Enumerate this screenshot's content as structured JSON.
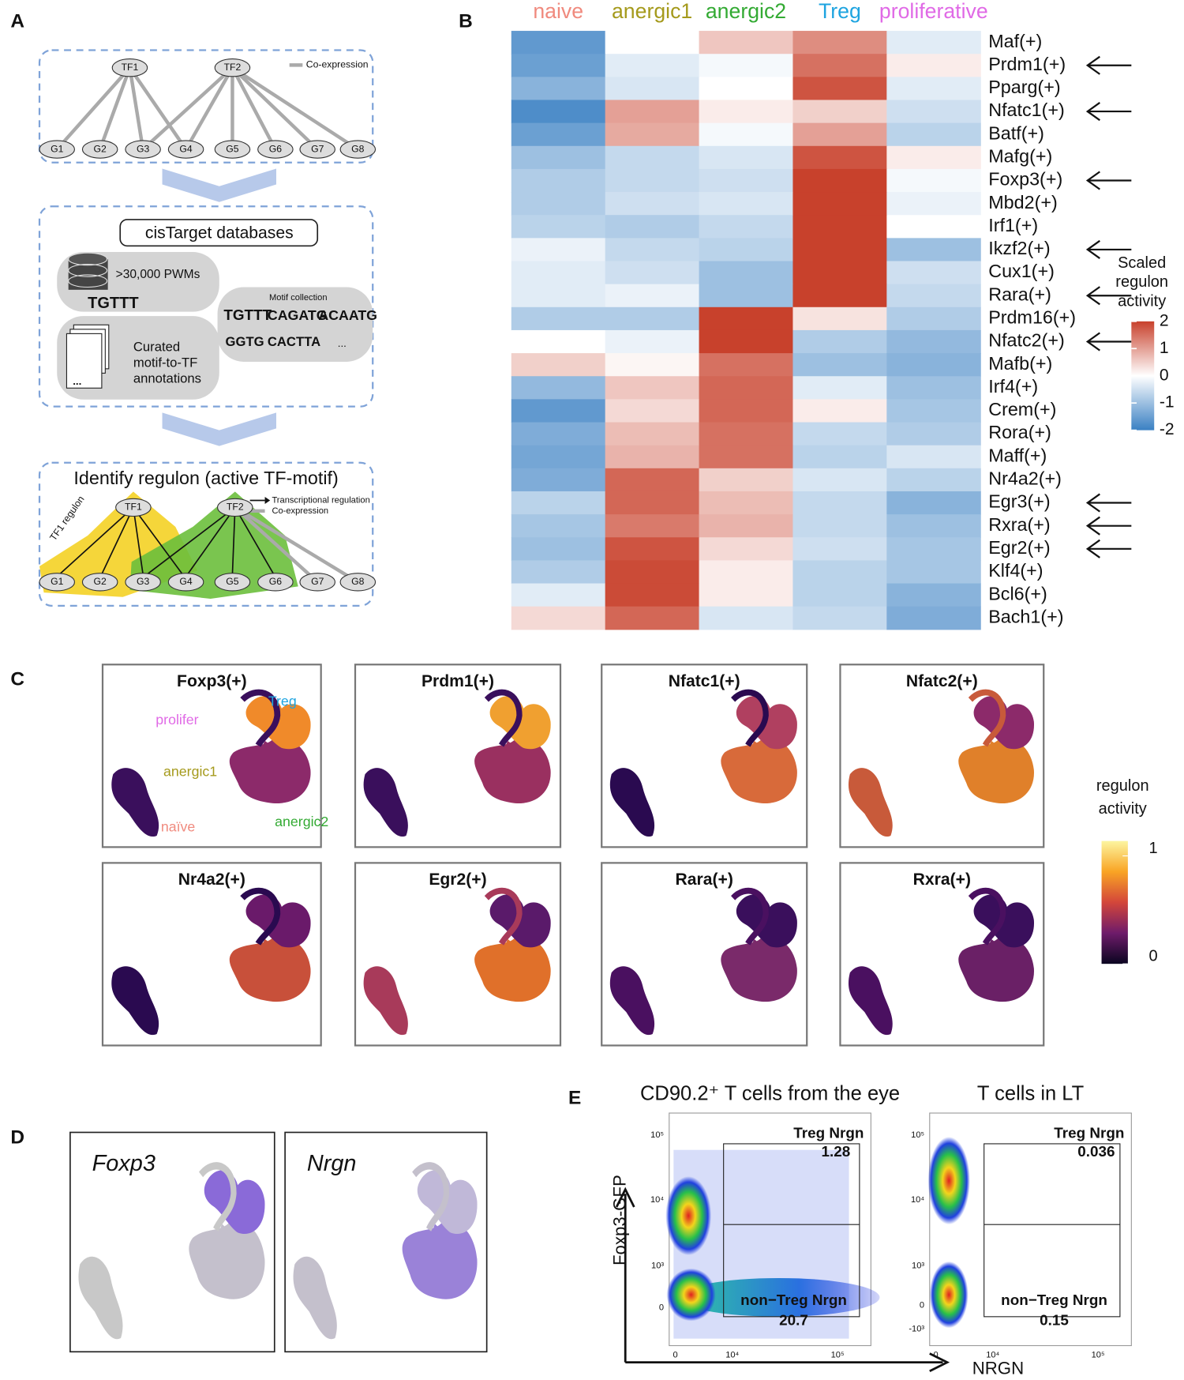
{
  "panel_labels": [
    "A",
    "B",
    "C",
    "D",
    "E"
  ],
  "panel_a": {
    "legend_coexpression": "Co-expression",
    "tfs": [
      "TF1",
      "TF2"
    ],
    "genes": [
      "G1",
      "G2",
      "G3",
      "G4",
      "G5",
      "G6",
      "G7",
      "G8"
    ],
    "databases_title": "cisTarget databases",
    "pwms": ">30,000 PWMs",
    "annotations": [
      "Curated",
      "motif-to-TF",
      "annotations"
    ],
    "motif_collection": "Motif collection",
    "motifs": [
      "TGTTT",
      "CAGATG",
      "ACAATG",
      "GGTG",
      "CACTTA",
      "..."
    ],
    "identify_title": "Identify regulon (active TF-motif)",
    "legend_regulation": "Transcriptional regulation",
    "legend_coexpression_2": "Co-expression",
    "regulon_label": "TF1 regulon"
  },
  "chart_data": {
    "type": "heatmap",
    "columns": [
      "naive",
      "anergic1",
      "anergic2",
      "Treg",
      "proliferative"
    ],
    "column_colors": [
      "#f08a7e",
      "#a59a1c",
      "#33aa33",
      "#1ea4e0",
      "#e06ae6"
    ],
    "rows": [
      "Maf(+)",
      "Prdm1(+)",
      "Pparg(+)",
      "Nfatc1(+)",
      "Batf(+)",
      "Mafg(+)",
      "Foxp3(+)",
      "Mbd2(+)",
      "Irf1(+)",
      "Ikzf2(+)",
      "Cux1(+)",
      "Rara(+)",
      "Prdm16(+)",
      "Nfatc2(+)",
      "Mafb(+)",
      "Irf4(+)",
      "Crem(+)",
      "Rora(+)",
      "Maff(+)",
      "Nr4a2(+)",
      "Egr3(+)",
      "Rxra(+)",
      "Egr2(+)",
      "Klf4(+)",
      "Bcl6(+)",
      "Bach1(+)"
    ],
    "values": [
      [
        -1.6,
        0,
        0.6,
        1.2,
        -0.3
      ],
      [
        -1.5,
        -0.3,
        -0.1,
        1.5,
        0.2
      ],
      [
        -1.2,
        -0.4,
        0,
        1.8,
        -0.3
      ],
      [
        -1.8,
        1.0,
        0.2,
        0.5,
        -0.5
      ],
      [
        -1.5,
        0.9,
        -0.1,
        1.0,
        -0.7
      ],
      [
        -1.0,
        -0.6,
        -0.4,
        1.8,
        0.2
      ],
      [
        -0.8,
        -0.6,
        -0.5,
        2.0,
        -0.1
      ],
      [
        -0.8,
        -0.5,
        -0.4,
        2.0,
        -0.2
      ],
      [
        -0.7,
        -0.8,
        -0.6,
        2.0,
        0
      ],
      [
        -0.2,
        -0.6,
        -0.7,
        2.0,
        -1.0
      ],
      [
        -0.3,
        -0.5,
        -1.0,
        2.0,
        -0.5
      ],
      [
        -0.3,
        -0.2,
        -1.0,
        2.0,
        -0.6
      ],
      [
        -0.8,
        -0.8,
        2.0,
        0.3,
        -0.8
      ],
      [
        0,
        -0.2,
        2.0,
        -0.8,
        -1.1
      ],
      [
        0.5,
        0.1,
        1.5,
        -1.0,
        -1.2
      ],
      [
        -1.1,
        0.6,
        1.6,
        -0.3,
        -1.0
      ],
      [
        -1.6,
        0.4,
        1.6,
        0.2,
        -0.9
      ],
      [
        -1.3,
        0.7,
        1.5,
        -0.6,
        -0.8
      ],
      [
        -1.4,
        0.8,
        1.5,
        -0.7,
        -0.4
      ],
      [
        -1.3,
        1.6,
        0.5,
        -0.4,
        -0.7
      ],
      [
        -0.7,
        1.6,
        0.7,
        -0.6,
        -1.2
      ],
      [
        -0.9,
        1.4,
        0.8,
        -0.6,
        -1.0
      ],
      [
        -1.0,
        1.8,
        0.4,
        -0.5,
        -0.9
      ],
      [
        -0.8,
        1.9,
        0.2,
        -0.7,
        -0.9
      ],
      [
        -0.3,
        1.9,
        0.2,
        -0.7,
        -1.2
      ],
      [
        0.4,
        1.6,
        -0.4,
        -0.6,
        -1.3
      ]
    ],
    "zlim": [
      -2,
      2
    ],
    "zticks": [
      2,
      1,
      0,
      -1,
      -2
    ],
    "colorscale": [
      "#3a80c3",
      "#ffffff",
      "#c8412c"
    ],
    "colorbar_title": [
      "Scaled",
      "regulon",
      "activity"
    ],
    "arrow_rows": [
      1,
      3,
      6,
      9,
      11,
      13,
      20,
      21,
      22
    ]
  },
  "panel_c": {
    "titles": [
      "Foxp3(+)",
      "Prdm1(+)",
      "Nfatc1(+)",
      "Nfatc2(+)",
      "Nr4a2(+)",
      "Egr2(+)",
      "Rara(+)",
      "Rxra(+)"
    ],
    "cluster_labels": [
      {
        "text": "Treg",
        "color": "#1ea4e0"
      },
      {
        "text": "prolifer",
        "color": "#e06ae6"
      },
      {
        "text": "anergic1",
        "color": "#a59a1c"
      },
      {
        "text": "naïve",
        "color": "#f08a7e"
      },
      {
        "text": "anergic2",
        "color": "#33aa33"
      }
    ],
    "colorbar_title": [
      "regulon",
      "activity"
    ],
    "zlim": [
      0,
      1
    ],
    "zticks": [
      1,
      0
    ]
  },
  "panel_d": {
    "titles": [
      "Foxp3",
      "Nrgn"
    ]
  },
  "panel_e": {
    "plots": [
      {
        "title": "CD90.2⁺ T cells from the eye",
        "gates": [
          {
            "label": "Treg Nrgn",
            "value": 1.28
          },
          {
            "label": "non−Treg Nrgn",
            "value": 20.7
          }
        ],
        "yticks": [
          "10⁵",
          "10⁴",
          "10³",
          "0"
        ],
        "xticks": [
          "0",
          "10⁴",
          "10⁵"
        ]
      },
      {
        "title": "T cells in LT",
        "gates": [
          {
            "label": "Treg Nrgn",
            "value": 0.036
          },
          {
            "label": "non−Treg Nrgn",
            "value": 0.15
          }
        ],
        "yticks": [
          "10⁵",
          "10⁴",
          "10³",
          "0",
          "-10³"
        ],
        "xticks": [
          "0",
          "10⁴",
          "10⁵"
        ]
      }
    ],
    "ylabel": "Foxp3-GFP",
    "xlabel": "NRGN"
  }
}
